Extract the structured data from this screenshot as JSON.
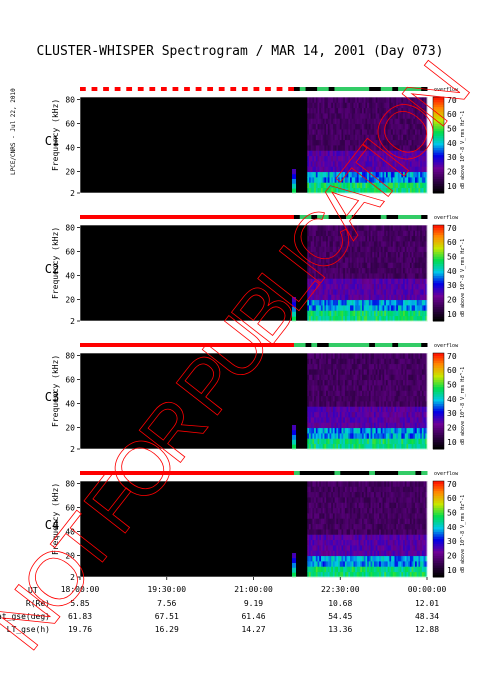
{
  "title": "CLUSTER-WHISPER Spectrogram / MAR 14, 2001 (Day 073)",
  "side_label": "LPCE/CNRS - Jul 22, 2010",
  "watermark": "NOT FOR PUBLICATION",
  "chart_data": {
    "type": "heatmap",
    "xlabel": "UT",
    "x_ticks": [
      "18:00:00",
      "19:30:00",
      "21:00:00",
      "22:30:00",
      "00:00:00"
    ],
    "ylabel": "Frequency (kHz)",
    "y_ticks": [
      2,
      20,
      40,
      60,
      80
    ],
    "ylim": [
      2,
      82
    ],
    "colorbar": {
      "label": "dB above 10^-8 V_rms Hz^-1",
      "ticks": [
        10,
        20,
        30,
        40,
        50,
        60,
        70
      ],
      "range": [
        5,
        72
      ],
      "header": "overflow"
    },
    "panels": [
      {
        "name": "C1",
        "color": "#000000"
      },
      {
        "name": "C2",
        "color": "#000000"
      },
      {
        "name": "C3",
        "color": "#22aa22"
      },
      {
        "name": "C4",
        "color": "#000000"
      }
    ],
    "ephemeris": [
      {
        "label": "R(Re)",
        "values": [
          "5.85",
          "7.56",
          "9.19",
          "10.68",
          "12.01"
        ]
      },
      {
        "label": "Lat_gse(deg)",
        "values": [
          "61.83",
          "67.51",
          "61.46",
          "54.45",
          "48.34"
        ]
      },
      {
        "label": "LT_gse(h)",
        "values": [
          "19.76",
          "16.29",
          "14.27",
          "13.36",
          "12.88"
        ]
      }
    ]
  },
  "colors": {
    "status_red": "#ff0000",
    "status_green": "#33cc66",
    "background_black": "#000000",
    "watermark_red": "#ff0000"
  }
}
